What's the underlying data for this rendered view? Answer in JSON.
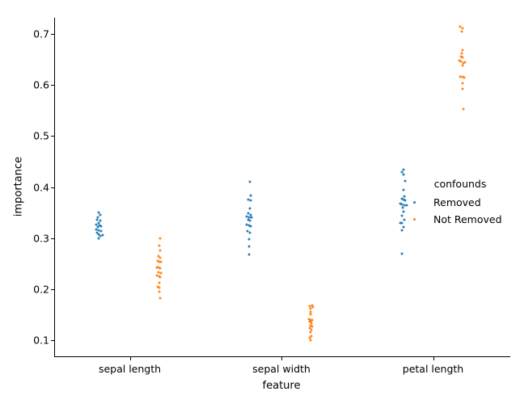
{
  "chart_data": {
    "type": "scatter",
    "subtype": "stripplot",
    "title": "",
    "xlabel": "feature",
    "ylabel": "importance",
    "categories": [
      "sepal length",
      "sepal width",
      "petal length"
    ],
    "yticks": [
      0.1,
      0.2,
      0.3,
      0.4,
      0.5,
      0.6,
      0.7
    ],
    "ylim": [
      0.068,
      0.732
    ],
    "grid": false,
    "legend": {
      "title": "confounds",
      "entries": [
        "Removed",
        "Not Removed"
      ],
      "position": "center right"
    },
    "series": [
      {
        "name": "Removed",
        "color": "#1f77b4",
        "points": {
          "sepal length": [
            [
              0.35,
              -0.3
            ],
            [
              0.345,
              1.0
            ],
            [
              0.341,
              -2.0
            ],
            [
              0.336,
              -3.0
            ],
            [
              0.334,
              1.0
            ],
            [
              0.33,
              -1.0
            ],
            [
              0.327,
              -3.3
            ],
            [
              0.325,
              0.3
            ],
            [
              0.323,
              2.3
            ],
            [
              0.321,
              -2.0
            ],
            [
              0.317,
              -4.0
            ],
            [
              0.315,
              -0.3
            ],
            [
              0.313,
              2.3
            ],
            [
              0.31,
              -2.7
            ],
            [
              0.307,
              -0.3
            ],
            [
              0.306,
              4.7
            ],
            [
              0.304,
              1.3
            ],
            [
              0.3,
              -1.0
            ]
          ],
          "sepal width": [
            [
              0.41,
              -1.0
            ],
            [
              0.384,
              0.0
            ],
            [
              0.375,
              -2.7
            ],
            [
              0.374,
              0.0
            ],
            [
              0.358,
              -1.0
            ],
            [
              0.348,
              -2.7
            ],
            [
              0.346,
              0.0
            ],
            [
              0.342,
              -5.0
            ],
            [
              0.341,
              -1.7
            ],
            [
              0.34,
              1.0
            ],
            [
              0.336,
              -3.3
            ],
            [
              0.334,
              -0.7
            ],
            [
              0.326,
              -5.0
            ],
            [
              0.325,
              -2.3
            ],
            [
              0.323,
              0.0
            ],
            [
              0.313,
              -4.0
            ],
            [
              0.311,
              -1.3
            ],
            [
              0.297,
              -1.7
            ],
            [
              0.283,
              -1.7
            ],
            [
              0.268,
              -1.7
            ]
          ],
          "petal length": [
            [
              0.434,
              1.5
            ],
            [
              0.429,
              -0.2
            ],
            [
              0.425,
              1.5
            ],
            [
              0.412,
              3.5
            ],
            [
              0.394,
              1.5
            ],
            [
              0.381,
              2.5
            ],
            [
              0.377,
              -0.8
            ],
            [
              0.376,
              1.5
            ],
            [
              0.374,
              3.5
            ],
            [
              0.367,
              -2.5
            ],
            [
              0.366,
              -0.2
            ],
            [
              0.365,
              2.5
            ],
            [
              0.364,
              5.2
            ],
            [
              0.36,
              0.8
            ],
            [
              0.352,
              1.5
            ],
            [
              0.344,
              -0.2
            ],
            [
              0.336,
              2.5
            ],
            [
              0.33,
              -2.5
            ],
            [
              0.329,
              -0.2
            ],
            [
              0.322,
              1.5
            ],
            [
              0.315,
              -0.2
            ],
            [
              0.269,
              -0.5
            ]
          ]
        }
      },
      {
        "name": "Not Removed",
        "color": "#ff7f0e",
        "points": {
          "sepal length": [
            [
              0.299,
              0.8
            ],
            [
              0.285,
              -0.5
            ],
            [
              0.276,
              0.8
            ],
            [
              0.265,
              -1.5
            ],
            [
              0.262,
              0.8
            ],
            [
              0.255,
              -2.5
            ],
            [
              0.254,
              0.2
            ],
            [
              0.253,
              1.8
            ],
            [
              0.243,
              -3.2
            ],
            [
              0.242,
              -0.8
            ],
            [
              0.24,
              0.8
            ],
            [
              0.233,
              -1.5
            ],
            [
              0.232,
              1.8
            ],
            [
              0.226,
              -3.2
            ],
            [
              0.225,
              -0.5
            ],
            [
              0.224,
              0.8
            ],
            [
              0.212,
              -0.5
            ],
            [
              0.204,
              -2.5
            ],
            [
              0.203,
              0.2
            ],
            [
              0.195,
              -0.5
            ],
            [
              0.182,
              0.8
            ]
          ],
          "sepal width": [
            [
              0.168,
              1.5
            ],
            [
              0.166,
              -1.2
            ],
            [
              0.164,
              2.8
            ],
            [
              0.161,
              -0.5
            ],
            [
              0.155,
              -0.5
            ],
            [
              0.15,
              -0.5
            ],
            [
              0.141,
              -2.8
            ],
            [
              0.139,
              -0.5
            ],
            [
              0.139,
              1.5
            ],
            [
              0.137,
              0.5
            ],
            [
              0.136,
              -1.8
            ],
            [
              0.133,
              0.3
            ],
            [
              0.129,
              -0.5
            ],
            [
              0.127,
              1.5
            ],
            [
              0.123,
              -1.8
            ],
            [
              0.121,
              0.5
            ],
            [
              0.116,
              -0.5
            ],
            [
              0.107,
              0.5
            ],
            [
              0.104,
              -1.2
            ],
            [
              0.099,
              -0.5
            ]
          ],
          "petal length": [
            [
              0.714,
              -3.0
            ],
            [
              0.712,
              0.3
            ],
            [
              0.705,
              -1.3
            ],
            [
              0.669,
              0.3
            ],
            [
              0.662,
              -1.0
            ],
            [
              0.656,
              -2.0
            ],
            [
              0.654,
              0.3
            ],
            [
              0.648,
              -4.3
            ],
            [
              0.647,
              -2.0
            ],
            [
              0.645,
              3.0
            ],
            [
              0.644,
              1.3
            ],
            [
              0.639,
              0.3
            ],
            [
              0.617,
              -3.0
            ],
            [
              0.616,
              -0.3
            ],
            [
              0.615,
              2.3
            ],
            [
              0.603,
              0.3
            ],
            [
              0.592,
              0.3
            ],
            [
              0.553,
              1.3
            ]
          ]
        }
      }
    ]
  }
}
